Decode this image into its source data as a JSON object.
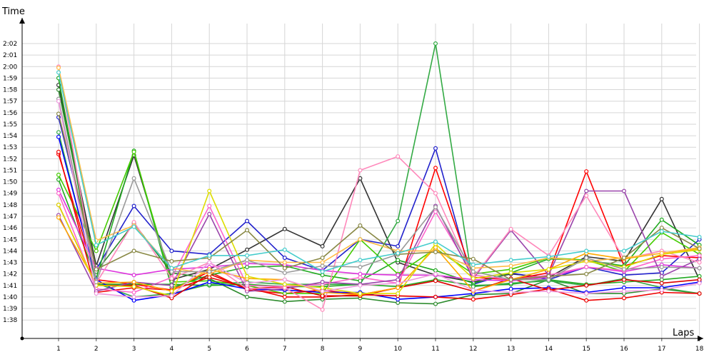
{
  "chart_data": {
    "type": "line",
    "title": "",
    "xlabel": "Laps",
    "ylabel": "Time",
    "x": [
      1,
      2,
      3,
      4,
      5,
      6,
      7,
      8,
      9,
      10,
      11,
      12,
      13,
      14,
      15,
      16,
      17,
      18
    ],
    "y_tick_labels": [
      "1:38",
      "1:39",
      "1:40",
      "1:41",
      "1:42",
      "1:43",
      "1:44",
      "1:45",
      "1:46",
      "1:47",
      "1:48",
      "1:49",
      "1:50",
      "1:51",
      "1:52",
      "1:53",
      "1:54",
      "1:55",
      "1:56",
      "1:57",
      "1:58",
      "1:59",
      "2:00",
      "2:01",
      "2:02"
    ],
    "y_tick_seconds": [
      98,
      99,
      100,
      101,
      102,
      103,
      104,
      105,
      106,
      107,
      108,
      109,
      110,
      111,
      112,
      113,
      114,
      115,
      116,
      117,
      118,
      119,
      120,
      121,
      122
    ],
    "ylim_seconds": [
      96.4,
      123.8
    ],
    "grid": true,
    "series": [
      {
        "color": "#333333",
        "values": [
          118.4,
          102.7,
          112.3,
          101.5,
          102.4,
          104.1,
          105.9,
          104.4,
          110.3,
          103.0,
          101.9,
          101.3,
          102.0,
          101.7,
          103.5,
          103.1,
          108.5,
          101.5
        ]
      },
      {
        "color": "#2222cc",
        "values": [
          115.6,
          102.4,
          107.9,
          104.0,
          103.7,
          106.6,
          103.4,
          102.3,
          105.0,
          104.4,
          112.9,
          101.1,
          102.1,
          101.5,
          102.6,
          101.9,
          102.1,
          105.0
        ]
      },
      {
        "color": "#ff0000",
        "values": [
          112.4,
          101.5,
          101.1,
          100.6,
          102.2,
          100.6,
          100.3,
          100.6,
          100.2,
          100.8,
          111.2,
          101.7,
          101.5,
          102.1,
          110.9,
          102.7,
          103.6,
          103.4
        ]
      },
      {
        "color": "#22aa22",
        "values": [
          110.2,
          101.6,
          112.7,
          100.8,
          101.9,
          102.6,
          102.7,
          101.9,
          101.4,
          103.2,
          102.3,
          101.2,
          102.1,
          103.3,
          103.2,
          102.7,
          106.7,
          104.5
        ]
      },
      {
        "color": "#44cc00",
        "values": [
          110.6,
          104.0,
          112.6,
          101.3,
          101.4,
          101.0,
          100.3,
          100.3,
          105.0,
          102.0,
          104.2,
          102.0,
          102.4,
          103.4,
          103.2,
          102.2,
          105.6,
          103.7
        ]
      },
      {
        "color": "#22aa22",
        "values": [
          119.0,
          101.1,
          101.1,
          101.1,
          101.0,
          101.1,
          100.9,
          100.9,
          101.1,
          100.9,
          101.5,
          101.0,
          101.1,
          101.5,
          101.1,
          101.3,
          101.5,
          101.8
        ]
      },
      {
        "color": "#2d8b2d",
        "values": [
          118.0,
          102.2,
          106.4,
          102.1,
          101.6,
          100.0,
          99.6,
          99.8,
          99.9,
          99.5,
          99.4,
          100.2,
          100.3,
          101.5,
          100.3,
          100.3,
          100.7,
          100.3
        ]
      },
      {
        "color": "#33aa44",
        "values": [
          114.3,
          101.2,
          100.0,
          100.3,
          101.1,
          101.3,
          101.1,
          101.1,
          101.1,
          106.6,
          122.0,
          100.9,
          101.2,
          101.4,
          101.0,
          101.6,
          100.8,
          100.3
        ]
      },
      {
        "color": "#0000ff",
        "values": [
          113.9,
          101.5,
          99.7,
          100.2,
          101.3,
          100.7,
          100.6,
          100.4,
          100.4,
          99.8,
          100.0,
          100.3,
          100.7,
          100.8,
          100.4,
          100.8,
          100.8,
          101.3
        ]
      },
      {
        "color": "#ee0000",
        "values": [
          112.6,
          100.4,
          100.8,
          100.6,
          101.7,
          100.8,
          100.0,
          100.0,
          100.2,
          100.1,
          100.0,
          99.8,
          100.2,
          100.7,
          99.7,
          99.9,
          100.4,
          100.3
        ]
      },
      {
        "color": "#dd0000",
        "values": [
          108.0,
          101.0,
          101.0,
          99.9,
          102.0,
          100.7,
          100.9,
          100.1,
          100.1,
          100.8,
          101.4,
          100.5,
          101.6,
          100.6,
          101.0,
          101.5,
          101.2,
          101.5
        ]
      },
      {
        "color": "#dd33dd",
        "values": [
          109.3,
          102.5,
          101.9,
          102.4,
          102.6,
          102.9,
          102.8,
          102.3,
          102.0,
          101.9,
          101.9,
          101.5,
          101.4,
          101.7,
          102.6,
          102.2,
          102.8,
          102.5
        ]
      },
      {
        "color": "#ff66cc",
        "values": [
          109.0,
          100.7,
          100.4,
          101.7,
          107.9,
          101.0,
          100.9,
          101.1,
          101.7,
          101.2,
          107.4,
          101.9,
          101.5,
          101.9,
          102.6,
          102.3,
          103.3,
          103.6
        ]
      },
      {
        "color": "#9944aa",
        "values": [
          107.1,
          100.5,
          101.3,
          101.0,
          107.2,
          100.5,
          100.7,
          101.3,
          101.1,
          101.5,
          107.9,
          101.6,
          105.8,
          101.9,
          109.2,
          109.2,
          101.8,
          103.3
        ]
      },
      {
        "color": "#ff88bb",
        "values": [
          120.0,
          101.2,
          106.5,
          101.6,
          103.0,
          100.7,
          100.8,
          98.9,
          111.0,
          112.2,
          109.0,
          101.7,
          105.9,
          103.6,
          108.8,
          103.3,
          104.0,
          103.0
        ]
      },
      {
        "color": "#ffaa00",
        "values": [
          106.9,
          101.2,
          101.3,
          100.5,
          102.4,
          101.6,
          101.5,
          100.4,
          100.2,
          100.8,
          104.3,
          100.5,
          101.5,
          102.4,
          103.8,
          103.3,
          103.8,
          104.2
        ]
      },
      {
        "color": "#dddd00",
        "values": [
          108.0,
          101.0,
          100.9,
          100.1,
          109.2,
          101.8,
          101.1,
          100.8,
          100.3,
          100.3,
          104.6,
          101.6,
          102.1,
          102.4,
          103.1,
          102.6,
          103.7,
          104.1
        ]
      },
      {
        "color": "#ffbb44",
        "values": [
          119.9,
          104.9,
          106.2,
          102.5,
          102.0,
          103.2,
          103.0,
          103.0,
          105.0,
          104.0,
          104.0,
          102.5,
          102.7,
          103.4,
          103.1,
          103.4,
          103.8,
          104.3
        ]
      },
      {
        "color": "#999999",
        "values": [
          117.2,
          101.3,
          110.3,
          102.2,
          102.2,
          103.2,
          102.1,
          102.7,
          102.6,
          103.7,
          107.8,
          102.2,
          101.5,
          101.5,
          103.4,
          102.4,
          102.6,
          102.5
        ]
      },
      {
        "color": "#888844",
        "values": [
          115.9,
          102.4,
          104.0,
          103.1,
          103.4,
          105.8,
          102.5,
          103.4,
          106.2,
          103.7,
          103.9,
          103.3,
          101.5,
          101.8,
          102.0,
          103.4,
          106.0,
          104.2
        ]
      },
      {
        "color": "#44cccc",
        "values": [
          119.5,
          104.5,
          106.1,
          102.5,
          103.6,
          103.6,
          104.1,
          102.2,
          103.2,
          103.8,
          104.8,
          102.8,
          103.2,
          103.5,
          104.0,
          104.0,
          105.7,
          105.2
        ]
      },
      {
        "color": "#ee99dd",
        "values": [
          117.0,
          100.3,
          100.0,
          100.1,
          103.0,
          101.2,
          101.5,
          100.5,
          101.0,
          101.2,
          102.0,
          100.6,
          100.4,
          100.5,
          100.3,
          100.5,
          100.6,
          101.2
        ]
      }
    ]
  }
}
